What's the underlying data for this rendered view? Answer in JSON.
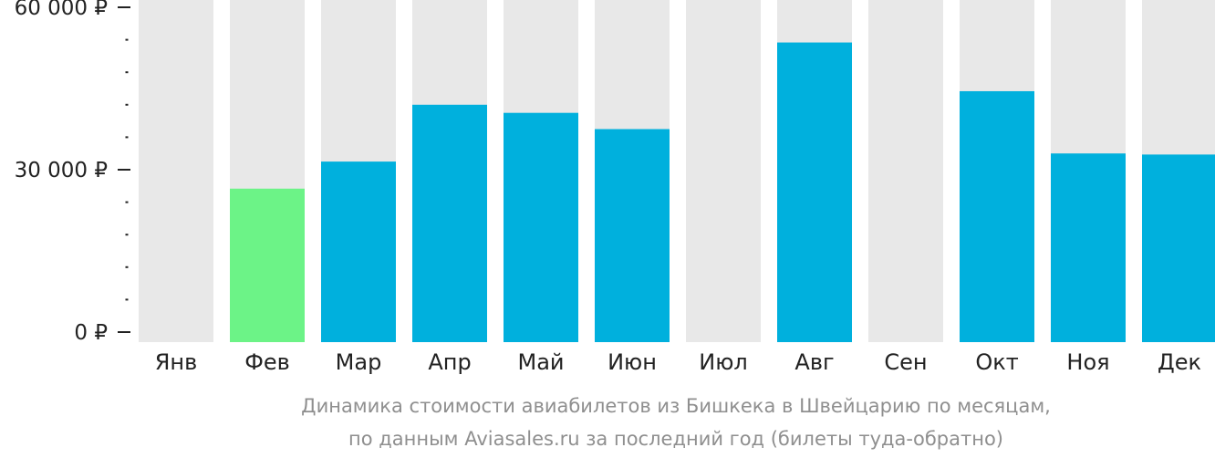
{
  "chart_data": {
    "type": "bar",
    "categories": [
      "Янв",
      "Фев",
      "Мар",
      "Апр",
      "Май",
      "Июн",
      "Июл",
      "Авг",
      "Сен",
      "Окт",
      "Ноя",
      "Дек"
    ],
    "values": [
      null,
      26500,
      31500,
      42000,
      40500,
      37500,
      null,
      53500,
      null,
      44500,
      33000,
      32800
    ],
    "highlight_category": "Фев",
    "ylim": [
      0,
      60000
    ],
    "y_ticks": [
      {
        "value": 0,
        "label": "0 ₽"
      },
      {
        "value": 30000,
        "label": "30 000 ₽"
      },
      {
        "value": 60000,
        "label": "60 000 ₽"
      }
    ],
    "y_minor_step": 6000,
    "colors": {
      "bar": "#00b0dd",
      "highlight": "#6cf387",
      "background_bar": "#e8e8e8",
      "axis": "#222222"
    }
  },
  "caption": {
    "line1": "Динамика стоимости авиабилетов из Бишкека в Швейцарию по месяцам,",
    "line2": "по данным Aviasales.ru за последний год (билеты туда-обратно)"
  }
}
